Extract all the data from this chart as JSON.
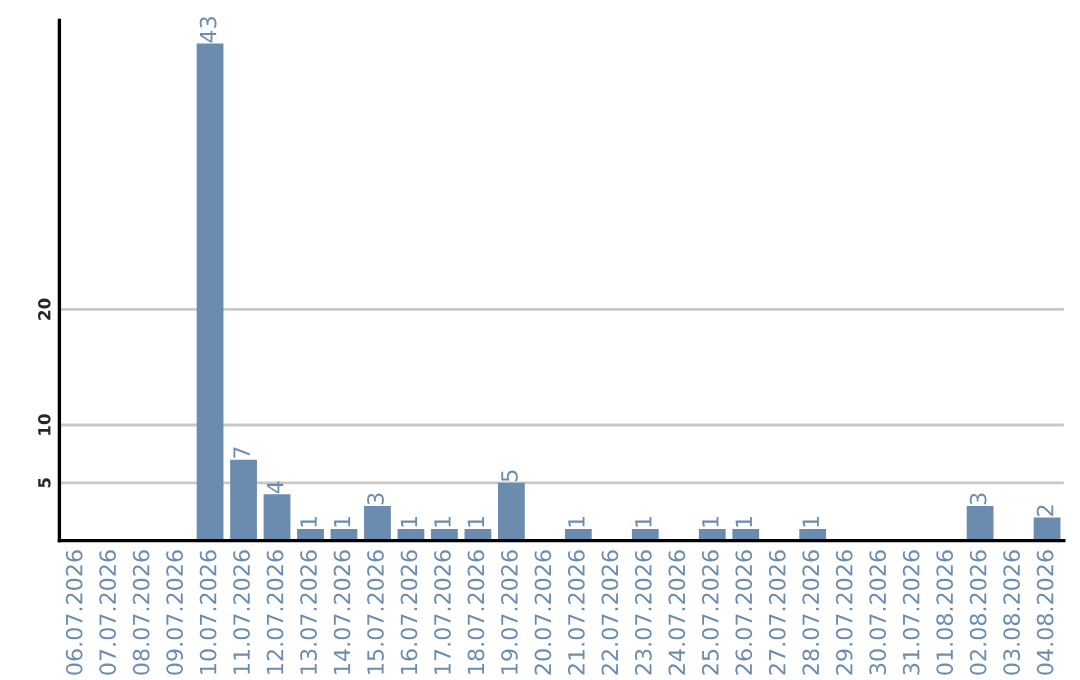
{
  "chart_data": {
    "type": "bar",
    "categories": [
      "06.07.2026",
      "07.07.2026",
      "08.07.2026",
      "09.07.2026",
      "10.07.2026",
      "11.07.2026",
      "12.07.2026",
      "13.07.2026",
      "14.07.2026",
      "15.07.2026",
      "16.07.2026",
      "17.07.2026",
      "18.07.2026",
      "19.07.2026",
      "20.07.2026",
      "21.07.2026",
      "22.07.2026",
      "23.07.2026",
      "24.07.2026",
      "25.07.2026",
      "26.07.2026",
      "27.07.2026",
      "28.07.2026",
      "29.07.2026",
      "30.07.2026",
      "31.07.2026",
      "01.08.2026",
      "02.08.2026",
      "03.08.2026",
      "04.08.2026"
    ],
    "values": [
      0,
      0,
      0,
      0,
      43,
      7,
      4,
      1,
      1,
      3,
      1,
      1,
      1,
      5,
      0,
      1,
      0,
      1,
      0,
      1,
      1,
      0,
      1,
      0,
      0,
      0,
      0,
      3,
      0,
      2
    ],
    "value_labels": [
      null,
      null,
      null,
      null,
      "43",
      "7",
      "4",
      "1",
      "1",
      "3",
      "1",
      "1",
      "1",
      "5",
      null,
      "1",
      null,
      "1",
      null,
      "1",
      "1",
      null,
      "1",
      null,
      null,
      null,
      null,
      "3",
      null,
      "2"
    ],
    "color": "#6b8cae",
    "ylim": [
      0,
      45
    ],
    "yticks": [
      5,
      10,
      20
    ],
    "grid": "y",
    "legend": false
  }
}
